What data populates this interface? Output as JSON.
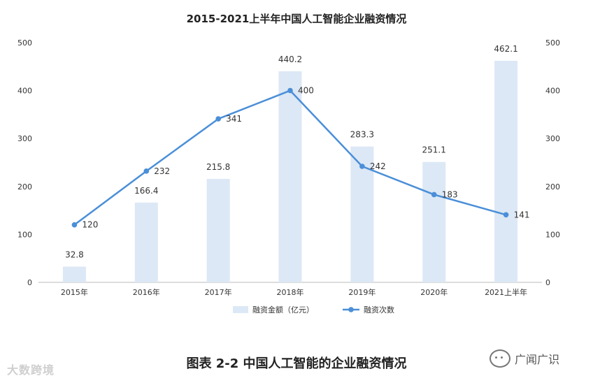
{
  "chart_data": {
    "type": "bar",
    "title": "2015-2021上半年中国人工智能企业融资情况",
    "categories": [
      "2015年",
      "2016年",
      "2017年",
      "2018年",
      "2019年",
      "2020年",
      "2021上半年"
    ],
    "series": [
      {
        "name": "融资金额（亿元）",
        "type": "bar",
        "axis": "left",
        "values": [
          32.8,
          166.4,
          215.8,
          440.2,
          283.3,
          251.1,
          462.1
        ],
        "labels": [
          "32.8",
          "166.4",
          "215.8",
          "440.2",
          "283.3",
          "251.1",
          "462.1"
        ],
        "color": "#dce8f5"
      },
      {
        "name": "融资次数",
        "type": "line",
        "axis": "right",
        "values": [
          120,
          232,
          341,
          400,
          242,
          183,
          141
        ],
        "labels": [
          "120",
          "232",
          "341",
          "400",
          "242",
          "183",
          "141"
        ],
        "color": "#4a8fd8"
      }
    ],
    "ylim": [
      0,
      500
    ],
    "y2lim": [
      0,
      500
    ],
    "yticks": [
      "0",
      "100",
      "200",
      "300",
      "400",
      "500"
    ],
    "legend": "bottom",
    "grid": false
  },
  "caption": "图表  2-2  中国人工智能的企业融资情况",
  "watermark_left": "大数跨境",
  "watermark_right": "广闻广识"
}
